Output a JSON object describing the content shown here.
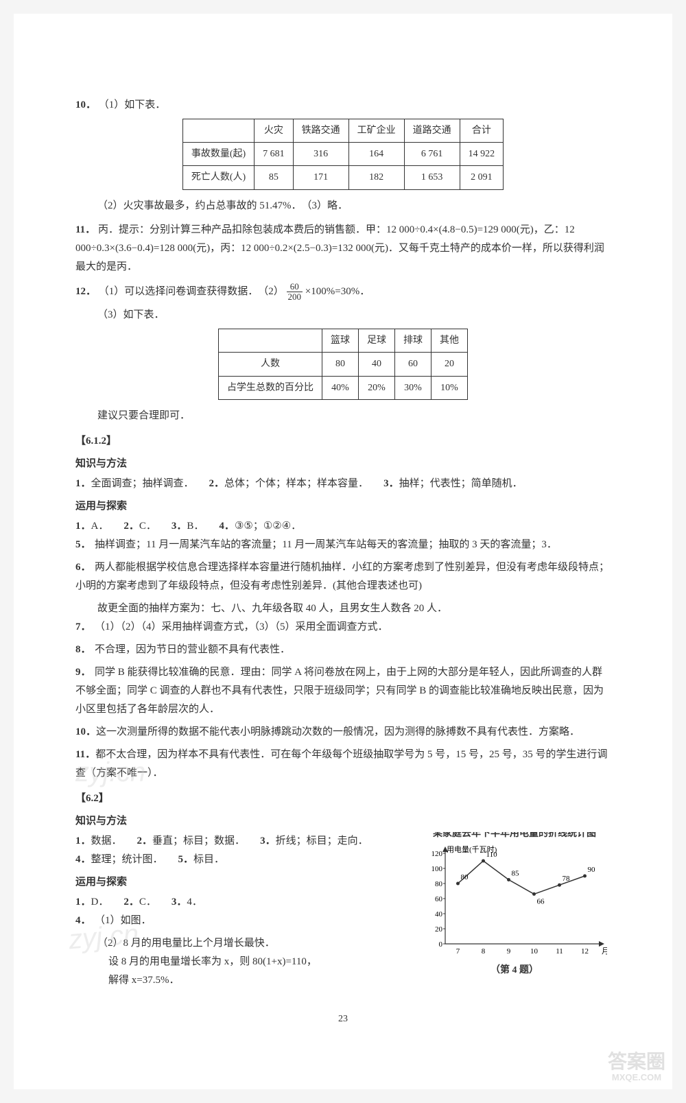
{
  "q10": {
    "num": "10．",
    "p1": "（1）如下表．",
    "table": {
      "headers": [
        "",
        "火灾",
        "铁路交通",
        "工矿企业",
        "道路交通",
        "合计"
      ],
      "rows": [
        [
          "事故数量(起)",
          "7 681",
          "316",
          "164",
          "6 761",
          "14 922"
        ],
        [
          "死亡人数(人)",
          "85",
          "171",
          "182",
          "1 653",
          "2 091"
        ]
      ]
    },
    "p2": "（2）火灾事故最多，约占总事故的 51.47%．　（3）略．"
  },
  "q11": {
    "num": "11．",
    "text": "丙．提示：分别计算三种产品扣除包装成本费后的销售额．甲：12 000÷0.4×(4.8−0.5)=129 000(元)，乙：12 000÷0.3×(3.6−0.4)=128 000(元)，丙：12 000÷0.2×(2.5−0.3)=132 000(元)．又每千克土特产的成本价一样，所以获得利润最大的是丙．"
  },
  "q12": {
    "num": "12．",
    "p1a": "（1）可以选择问卷调查获得数据．　（2）",
    "p1b": "×100%=30%．",
    "frac_top": "60",
    "frac_bot": "200",
    "p2": "（3）如下表．",
    "table": {
      "headers": [
        "",
        "篮球",
        "足球",
        "排球",
        "其他"
      ],
      "rows": [
        [
          "人数",
          "80",
          "40",
          "60",
          "20"
        ],
        [
          "占学生总数的百分比",
          "40%",
          "20%",
          "30%",
          "10%"
        ]
      ]
    },
    "p3": "建议只要合理即可．"
  },
  "s612": {
    "head": "【6.1.2】",
    "km_head": "知识与方法",
    "km": [
      {
        "n": "1．",
        "t": "全面调查；抽样调查．"
      },
      {
        "n": "2．",
        "t": "总体；个体；样本；样本容量．"
      },
      {
        "n": "3．",
        "t": "抽样；代表性；简单随机．"
      }
    ],
    "yy_head": "运用与探索",
    "short": [
      {
        "n": "1．",
        "t": "A．"
      },
      {
        "n": "2．",
        "t": "C．"
      },
      {
        "n": "3．",
        "t": "B．"
      },
      {
        "n": "4．",
        "t": "③⑤；①②④．"
      }
    ],
    "q5": {
      "n": "5．",
      "t": "抽样调查；11 月一周某汽车站的客流量；11 月一周某汽车站每天的客流量；抽取的 3 天的客流量；3．"
    },
    "q6": {
      "n": "6．",
      "t": "两人都能根据学校信息合理选择样本容量进行随机抽样．小红的方案考虑到了性别差异，但没有考虑年级段特点；小明的方案考虑到了年级段特点，但没有考虑性别差异．(其他合理表述也可)",
      "t2": "故更全面的抽样方案为：七、八、九年级各取 40 人，且男女生人数各 20 人．"
    },
    "q7": {
      "n": "7．",
      "t": "（1）（2）（4）采用抽样调查方式，（3）（5）采用全面调查方式．"
    },
    "q8": {
      "n": "8．",
      "t": "不合理，因为节日的营业额不具有代表性．"
    },
    "q9": {
      "n": "9．",
      "t": "同学 B 能获得比较准确的民意．理由：同学 A 将问卷放在网上，由于上网的大部分是年轻人，因此所调查的人群不够全面；同学 C 调查的人群也不具有代表性，只限于班级同学；只有同学 B 的调查能比较准确地反映出民意，因为小区里包括了各年龄层次的人．"
    },
    "q10": {
      "n": "10．",
      "t": "这一次测量所得的数据不能代表小明脉搏跳动次数的一般情况，因为测得的脉搏数不具有代表性．方案略．"
    },
    "q11": {
      "n": "11．",
      "t": "都不太合理，因为样本不具有代表性．可在每个年级每个班级抽取学号为 5 号，15 号，25 号，35 号的学生进行调查（方案不唯一）．"
    }
  },
  "s62": {
    "head": "【6.2】",
    "km_head": "知识与方法",
    "km": [
      {
        "n": "1．",
        "t": "数据．"
      },
      {
        "n": "2．",
        "t": "垂直；标目；数据．"
      },
      {
        "n": "3．",
        "t": "折线；标目；走向．"
      },
      {
        "n": "4．",
        "t": "整理；统计图．"
      },
      {
        "n": "5．",
        "t": "标目．"
      }
    ],
    "yy_head": "运用与探索",
    "short": [
      {
        "n": "1．",
        "t": "D．"
      },
      {
        "n": "2．",
        "t": "C．"
      },
      {
        "n": "3．",
        "t": "4．"
      }
    ],
    "q4": {
      "n": "4．",
      "p1": "（1）如图．",
      "p2": "（2）8 月的用电量比上个月增长最快．",
      "p3": "设 8 月的用电量增长率为 x，则 80(1+x)=110，",
      "p4": "解得 x=37.5%．"
    }
  },
  "chart": {
    "title": "某家庭去年下半年用电量的折线统计图",
    "ylabel": "用电量(千瓦时)",
    "xlabel": "月份",
    "caption": "（第 4 题）",
    "ylim": [
      0,
      120
    ],
    "ystep": 20,
    "xcats": [
      "7",
      "8",
      "9",
      "10",
      "11",
      "12"
    ],
    "values": [
      80,
      110,
      85,
      66,
      78,
      90
    ],
    "labels": [
      "80",
      "110",
      "85",
      "66",
      "78",
      "90"
    ],
    "line_color": "#333333",
    "grid_color": "#999999",
    "bg": "#ffffff",
    "axis_fontsize": 11
  },
  "pagenum": "23",
  "watermarks": {
    "wm1": "zyj.cn",
    "wm2": "zyj.cn"
  },
  "corner": {
    "l1": "答案圈",
    "l2": "MXQE.COM"
  }
}
